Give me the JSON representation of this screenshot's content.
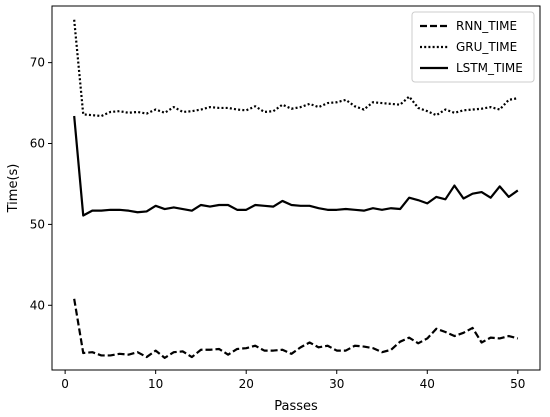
{
  "chart_data": {
    "type": "line",
    "title": "",
    "xlabel": "Passes",
    "ylabel": "Time(s)",
    "xlim": [
      -1.45,
      52.45
    ],
    "ylim": [
      32.0,
      77.0
    ],
    "grid": false,
    "legend_position": "top-right",
    "x_ticks": [
      0,
      10,
      20,
      30,
      40,
      50
    ],
    "y_ticks": [
      40,
      50,
      60,
      70
    ],
    "x": [
      1,
      2,
      3,
      4,
      5,
      6,
      7,
      8,
      9,
      10,
      11,
      12,
      13,
      14,
      15,
      16,
      17,
      18,
      19,
      20,
      21,
      22,
      23,
      24,
      25,
      26,
      27,
      28,
      29,
      30,
      31,
      32,
      33,
      34,
      35,
      36,
      37,
      38,
      39,
      40,
      41,
      42,
      43,
      44,
      45,
      46,
      47,
      48,
      49,
      50
    ],
    "series": [
      {
        "name": "RNN_TIME",
        "style": "dashed",
        "color": "#000000",
        "values": [
          40.8,
          34.1,
          34.2,
          33.8,
          33.8,
          34.0,
          33.9,
          34.2,
          33.6,
          34.4,
          33.5,
          34.2,
          34.3,
          33.6,
          34.5,
          34.5,
          34.6,
          33.9,
          34.6,
          34.7,
          35.0,
          34.4,
          34.4,
          34.5,
          34.0,
          34.8,
          35.4,
          34.8,
          35.0,
          34.4,
          34.4,
          35.0,
          34.9,
          34.7,
          34.2,
          34.5,
          35.5,
          36.0,
          35.3,
          35.9,
          37.1,
          36.7,
          36.2,
          36.6,
          37.2,
          35.4,
          36.0,
          35.9,
          36.2,
          35.9
        ]
      },
      {
        "name": "GRU_TIME",
        "style": "dotted",
        "color": "#000000",
        "values": [
          75.3,
          63.6,
          63.5,
          63.4,
          63.9,
          64.0,
          63.8,
          63.9,
          63.7,
          64.2,
          63.8,
          64.5,
          63.9,
          64.0,
          64.2,
          64.5,
          64.4,
          64.4,
          64.2,
          64.1,
          64.6,
          63.9,
          64.0,
          64.8,
          64.3,
          64.5,
          64.9,
          64.5,
          65.0,
          65.1,
          65.4,
          64.6,
          64.2,
          65.1,
          65.0,
          64.9,
          64.8,
          65.8,
          64.4,
          64.0,
          63.5,
          64.2,
          63.8,
          64.1,
          64.2,
          64.3,
          64.5,
          64.2,
          65.4,
          65.6
        ]
      },
      {
        "name": "LSTM_TIME",
        "style": "solid",
        "color": "#000000",
        "values": [
          63.4,
          51.1,
          51.7,
          51.7,
          51.8,
          51.8,
          51.7,
          51.5,
          51.6,
          52.3,
          51.9,
          52.1,
          51.9,
          51.7,
          52.4,
          52.2,
          52.4,
          52.4,
          51.8,
          51.8,
          52.4,
          52.3,
          52.2,
          52.9,
          52.4,
          52.3,
          52.3,
          52.0,
          51.8,
          51.8,
          51.9,
          51.8,
          51.7,
          52.0,
          51.8,
          52.0,
          51.9,
          53.3,
          53.0,
          52.6,
          53.4,
          53.1,
          54.8,
          53.2,
          53.8,
          54.0,
          53.3,
          54.7,
          53.4,
          54.2
        ]
      }
    ]
  }
}
